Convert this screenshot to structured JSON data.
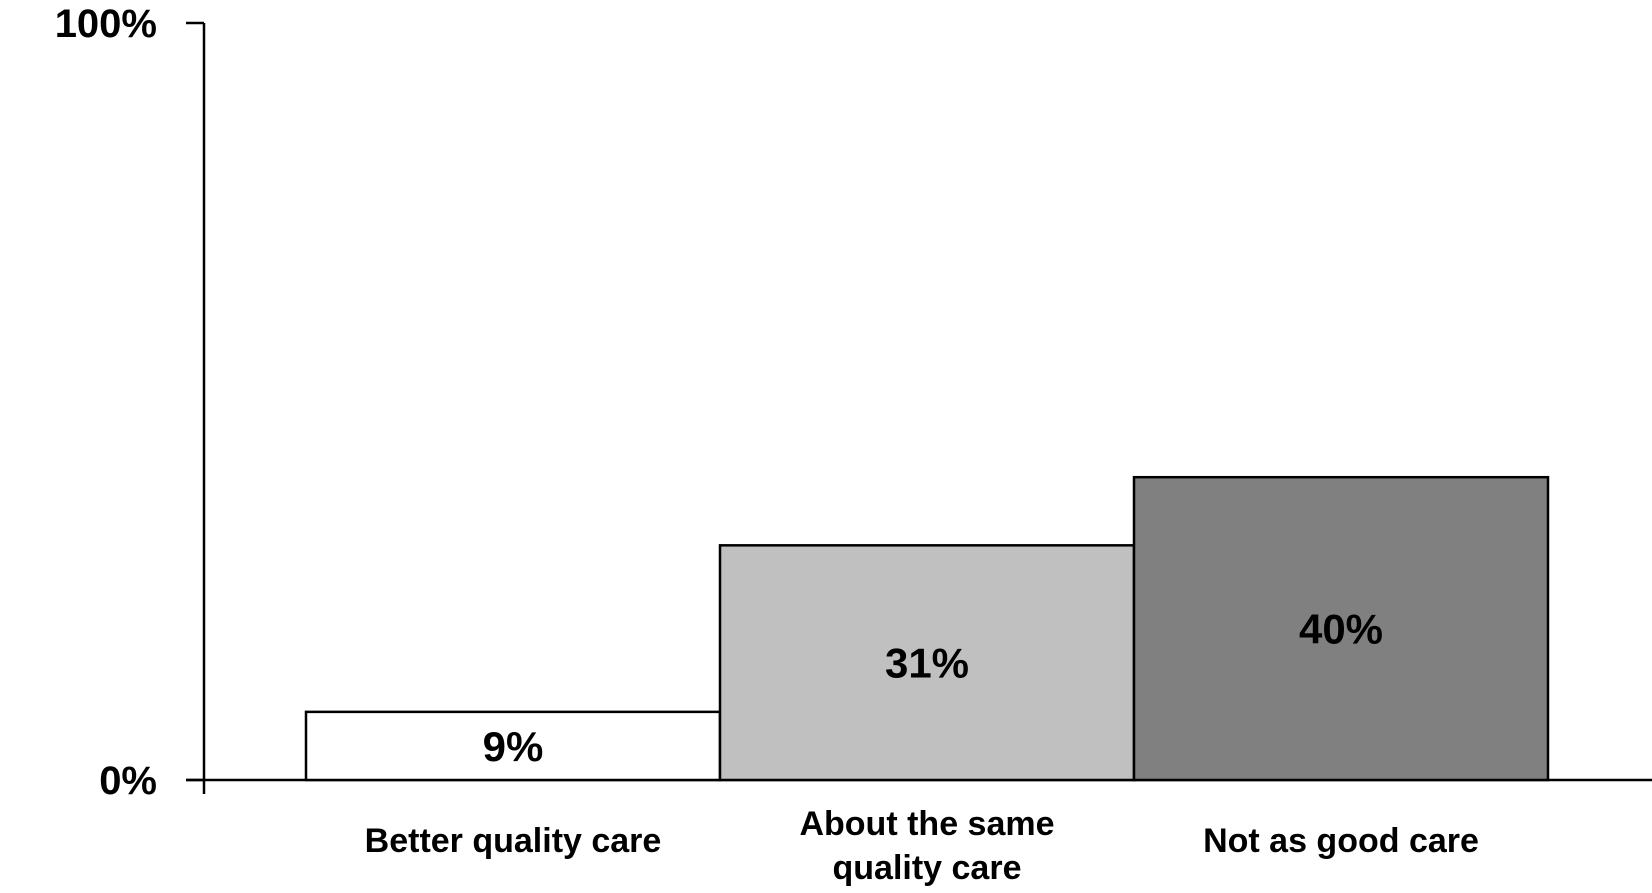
{
  "chart_data": {
    "type": "bar",
    "categories": [
      "Better quality care",
      "About the same quality care",
      "Not as good care"
    ],
    "category_lines": [
      [
        "Better quality care"
      ],
      [
        "About the same",
        "quality care"
      ],
      [
        "Not as good care"
      ]
    ],
    "values": [
      9,
      31,
      40
    ],
    "data_labels": [
      "9%",
      "31%",
      "40%"
    ],
    "bar_colors": [
      "#ffffff",
      "#c0c0c0",
      "#808080"
    ],
    "bar_stroke": "#000000",
    "ylim": [
      0,
      100
    ],
    "yticks": [
      {
        "value": 0,
        "label": "0%"
      },
      {
        "value": 100,
        "label": "100%"
      }
    ],
    "title": "",
    "xlabel": "",
    "ylabel": "",
    "grid": false,
    "legend": "none"
  }
}
